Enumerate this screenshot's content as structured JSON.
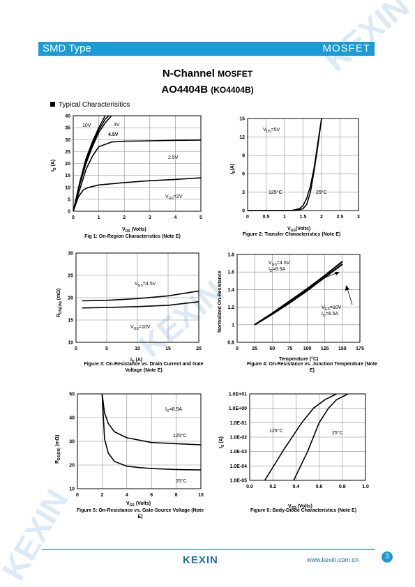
{
  "header": {
    "left": "SMD Type",
    "right": "MOSFET"
  },
  "title": {
    "main": "N-Channel",
    "main_suffix": "MOSFET",
    "part": "AO4404B",
    "part_alt": "(KO4404B)"
  },
  "section": "Typical  Characterisitics",
  "watermark": "KEXIN",
  "colors": {
    "accent": "#1a9ad6",
    "logo": "#1a6fb5"
  },
  "charts": {
    "fig1": {
      "caption": "Fig 1: On-Region Characteristics (Note E)",
      "xlabel": "V",
      "xlabel_sub": "DS",
      "xlabel_unit": " (Volts)",
      "ylabel": "I",
      "ylabel_sub": "D",
      "ylabel_unit": " (A)",
      "labels": {
        "v10": "10V",
        "v3": "3V",
        "v45": "4.5V",
        "v25": "2.5V",
        "vgs": "V",
        "vgs_sub": "GS",
        "vgs_val": "=2V"
      },
      "xticks": [
        "0",
        "1",
        "2",
        "3",
        "4",
        "5"
      ],
      "yticks": [
        "0",
        "5",
        "10",
        "15",
        "20",
        "25",
        "30",
        "35",
        "40"
      ]
    },
    "fig2": {
      "caption": "Figure 2: Transfer Characteristics (Note E)",
      "xlabel": "V",
      "xlabel_sub": "GS",
      "xlabel_unit": "(Volts)",
      "ylabel": "I",
      "ylabel_sub": "D",
      "ylabel_unit": "(A)",
      "labels": {
        "vds": "V",
        "vds_sub": "DS",
        "vds_val": "=5V",
        "t125": "125°C",
        "t25": "25°C"
      },
      "xticks": [
        "0",
        "0.5",
        "1",
        "1.5",
        "2",
        "2.5",
        "3"
      ],
      "yticks": [
        "0",
        "3",
        "6",
        "9",
        "12",
        "15"
      ]
    },
    "fig3": {
      "caption": "Figure 3: On-Resistance vs. Drain Current and Gate Voltage (Note E)",
      "xlabel": "I",
      "xlabel_sub": "D",
      "xlabel_unit": " (A)",
      "ylabel": "R",
      "ylabel_sub": "DS(ON)",
      "ylabel_unit": " (mΩ)",
      "labels": {
        "v45": "V",
        "v45_sub": "GS",
        "v45_val": "=4.5V",
        "v10": "V",
        "v10_sub": "GS",
        "v10_val": "=10V"
      },
      "xticks": [
        "0",
        "5",
        "10",
        "15",
        "20"
      ],
      "yticks": [
        "10",
        "15",
        "20",
        "25",
        "30"
      ]
    },
    "fig4": {
      "caption": "Figure 4: On-Resistance vs. Junction Temperature (Note E)",
      "xlabel": "Temperature (°C)",
      "ylabel": "Normalized On-Resistance",
      "labels": {
        "a1": "V",
        "a1_sub": "GS",
        "a1_val": "=4.5V",
        "a2": "I",
        "a2_sub": "D",
        "a2_val": "=8.5A",
        "b1": "V",
        "b1_sub": "GS",
        "b1_val": "=10V",
        "b2": "I",
        "b2_sub": "D",
        "b2_val": "=8.5A"
      },
      "xticks": [
        "0",
        "25",
        "50",
        "75",
        "100",
        "125",
        "150",
        "175"
      ],
      "yticks": [
        "0.8",
        "1",
        "1.2",
        "1.4",
        "1.6",
        "1.8"
      ]
    },
    "fig5": {
      "caption": "Figure 5: On-Resistance vs. Gate-Source Voltage (Note E)",
      "xlabel": "V",
      "xlabel_sub": "GS",
      "xlabel_unit": " (Volts)",
      "ylabel": "R",
      "ylabel_sub": "DS(ON)",
      "ylabel_unit": " (mΩ)",
      "labels": {
        "id": "I",
        "id_sub": "D",
        "id_val": "=8.5A",
        "t125": "125°C",
        "t25": "25°C"
      },
      "xticks": [
        "0",
        "2",
        "4",
        "6",
        "8",
        "10"
      ],
      "yticks": [
        "10",
        "20",
        "30",
        "40",
        "50"
      ]
    },
    "fig6": {
      "caption": "Figure 6: Body-Diode Characteristics (Note E)",
      "xlabel": "V",
      "xlabel_sub": "SD",
      "xlabel_unit": " (Volts)",
      "ylabel": "I",
      "ylabel_sub": "S",
      "ylabel_unit": " (A)",
      "labels": {
        "t125": "125°C",
        "t25": "25°C"
      },
      "xticks": [
        "0.0",
        "0.2",
        "0.4",
        "0.6",
        "0.8",
        "1.0"
      ],
      "yticks": [
        "1.0E-05",
        "1.0E-04",
        "1.0E-03",
        "1.0E-02",
        "1.0E-01",
        "1.0E+00",
        "1.0E+01"
      ]
    }
  },
  "chart_data": [
    {
      "type": "line",
      "id": "fig1",
      "xlim": [
        0,
        5
      ],
      "ylim": [
        0,
        40
      ],
      "grid": true,
      "series": [
        {
          "name": "10V",
          "x": [
            0,
            0.25,
            0.5,
            0.75,
            1,
            1.25
          ],
          "y": [
            0,
            12,
            22,
            29,
            35,
            40
          ]
        },
        {
          "name": "3V",
          "x": [
            0,
            0.25,
            0.5,
            0.75,
            1,
            1.25,
            1.5
          ],
          "y": [
            0,
            11,
            20,
            27,
            33,
            37,
            40
          ]
        },
        {
          "name": "4.5V",
          "x": [
            0,
            0.25,
            0.5,
            0.75,
            1,
            1.25,
            1.4
          ],
          "y": [
            0,
            11.5,
            21,
            28,
            34,
            38.5,
            40
          ]
        },
        {
          "name": "2.5V",
          "x": [
            0,
            0.25,
            0.5,
            0.75,
            1,
            1.5,
            2,
            3,
            4,
            5
          ],
          "y": [
            0,
            9,
            17.5,
            23,
            27,
            29,
            29.3,
            29.5,
            29.7,
            29.8
          ]
        },
        {
          "name": "VGS=2V",
          "x": [
            0,
            0.2,
            0.4,
            0.6,
            1,
            2,
            3,
            4,
            5
          ],
          "y": [
            0,
            6,
            9,
            10,
            11,
            12,
            12.8,
            13.3,
            14
          ]
        }
      ]
    },
    {
      "type": "line",
      "id": "fig2",
      "xlim": [
        0,
        3
      ],
      "ylim": [
        0,
        15
      ],
      "grid": true,
      "series": [
        {
          "name": "125°C",
          "x": [
            0,
            1,
            1.2,
            1.4,
            1.5,
            1.6,
            1.7,
            1.8,
            1.9,
            2.0
          ],
          "y": [
            0,
            0,
            0.02,
            0.3,
            0.8,
            2,
            4,
            7,
            11,
            15
          ]
        },
        {
          "name": "25°C",
          "x": [
            0,
            1,
            1.3,
            1.5,
            1.6,
            1.7,
            1.8,
            1.9,
            2.0
          ],
          "y": [
            0,
            0,
            0.02,
            0.3,
            1,
            3,
            6.5,
            10.5,
            15
          ]
        }
      ]
    },
    {
      "type": "line",
      "id": "fig3",
      "xlim": [
        0,
        20
      ],
      "ylim": [
        10,
        30
      ],
      "grid": true,
      "series": [
        {
          "name": "VGS=4.5V",
          "x": [
            1,
            5,
            10,
            15,
            20
          ],
          "y": [
            19.3,
            19.4,
            19.8,
            20.4,
            21.5
          ]
        },
        {
          "name": "VGS=10V",
          "x": [
            1,
            5,
            10,
            15,
            20
          ],
          "y": [
            17.7,
            17.8,
            18.0,
            18.3,
            19.1
          ]
        }
      ]
    },
    {
      "type": "line",
      "id": "fig4",
      "xlim": [
        0,
        175
      ],
      "ylim": [
        0.8,
        1.8
      ],
      "grid": true,
      "series": [
        {
          "name": "VGS=4.5V ID=8.5A",
          "x": [
            25,
            50,
            75,
            100,
            125,
            150
          ],
          "y": [
            1.0,
            1.13,
            1.27,
            1.41,
            1.56,
            1.72
          ]
        },
        {
          "name": "VGS=10V ID=8.5A",
          "x": [
            25,
            50,
            75,
            100,
            125,
            150
          ],
          "y": [
            1.0,
            1.12,
            1.25,
            1.39,
            1.54,
            1.69
          ]
        }
      ]
    },
    {
      "type": "line",
      "id": "fig5",
      "xlim": [
        0,
        10
      ],
      "ylim": [
        10,
        50
      ],
      "grid": true,
      "series": [
        {
          "name": "125°C",
          "x": [
            2,
            2.2,
            2.5,
            3,
            4,
            5,
            6,
            8,
            10
          ],
          "y": [
            50,
            42,
            37.5,
            34,
            31.5,
            30.5,
            29.5,
            29,
            28.5
          ]
        },
        {
          "name": "25°C",
          "x": [
            2,
            2.2,
            2.5,
            3,
            4,
            5,
            6,
            8,
            10
          ],
          "y": [
            50,
            31,
            25,
            21.5,
            19.5,
            18.9,
            18.5,
            18.1,
            17.9
          ]
        }
      ]
    },
    {
      "type": "line",
      "id": "fig6",
      "xlim": [
        0,
        1
      ],
      "ylim": [
        -5,
        1
      ],
      "yscale": "log",
      "grid": true,
      "series": [
        {
          "name": "125°C",
          "x": [
            0.13,
            0.3,
            0.45,
            0.55,
            0.65,
            0.75
          ],
          "y": [
            -5,
            -2.8,
            -1,
            0,
            0.6,
            1
          ]
        },
        {
          "name": "25°C",
          "x": [
            0.38,
            0.5,
            0.6,
            0.68,
            0.75,
            0.85
          ],
          "y": [
            -5,
            -3,
            -1,
            0,
            0.6,
            1
          ]
        }
      ]
    }
  ],
  "footer": {
    "logo": "KEXIN",
    "url": "www.kexin.com.cn",
    "page": "3"
  }
}
